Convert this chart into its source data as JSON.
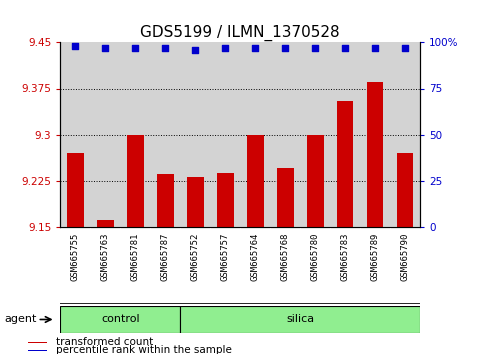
{
  "title": "GDS5199 / ILMN_1370528",
  "samples": [
    "GSM665755",
    "GSM665763",
    "GSM665781",
    "GSM665787",
    "GSM665752",
    "GSM665757",
    "GSM665764",
    "GSM665768",
    "GSM665780",
    "GSM665783",
    "GSM665789",
    "GSM665790"
  ],
  "bar_values": [
    9.27,
    9.16,
    9.3,
    9.235,
    9.23,
    9.237,
    9.3,
    9.245,
    9.3,
    9.355,
    9.385,
    9.27
  ],
  "percentile_values": [
    98,
    97,
    97,
    97,
    96,
    97,
    97,
    97,
    97,
    97,
    97,
    97
  ],
  "bar_color": "#cc0000",
  "dot_color": "#0000cc",
  "ylim_left": [
    9.15,
    9.45
  ],
  "ylim_right": [
    0,
    100
  ],
  "yticks_left": [
    9.15,
    9.225,
    9.3,
    9.375,
    9.45
  ],
  "yticks_right": [
    0,
    25,
    50,
    75,
    100
  ],
  "ytick_labels_left": [
    "9.15",
    "9.225",
    "9.3",
    "9.375",
    "9.45"
  ],
  "ytick_labels_right": [
    "0",
    "25",
    "50",
    "75",
    "100%"
  ],
  "groups": [
    {
      "label": "control",
      "n_samples": 4,
      "color": "#90ee90"
    },
    {
      "label": "silica",
      "n_samples": 8,
      "color": "#90ee90"
    }
  ],
  "agent_label": "agent",
  "legend_items": [
    {
      "color": "#cc0000",
      "label": "transformed count"
    },
    {
      "color": "#0000cc",
      "label": "percentile rank within the sample"
    }
  ],
  "plot_bg_color": "#d3d3d3",
  "xtick_bg_color": "#c0c0c0",
  "title_fontsize": 11,
  "tick_fontsize": 7.5,
  "bar_width": 0.55
}
